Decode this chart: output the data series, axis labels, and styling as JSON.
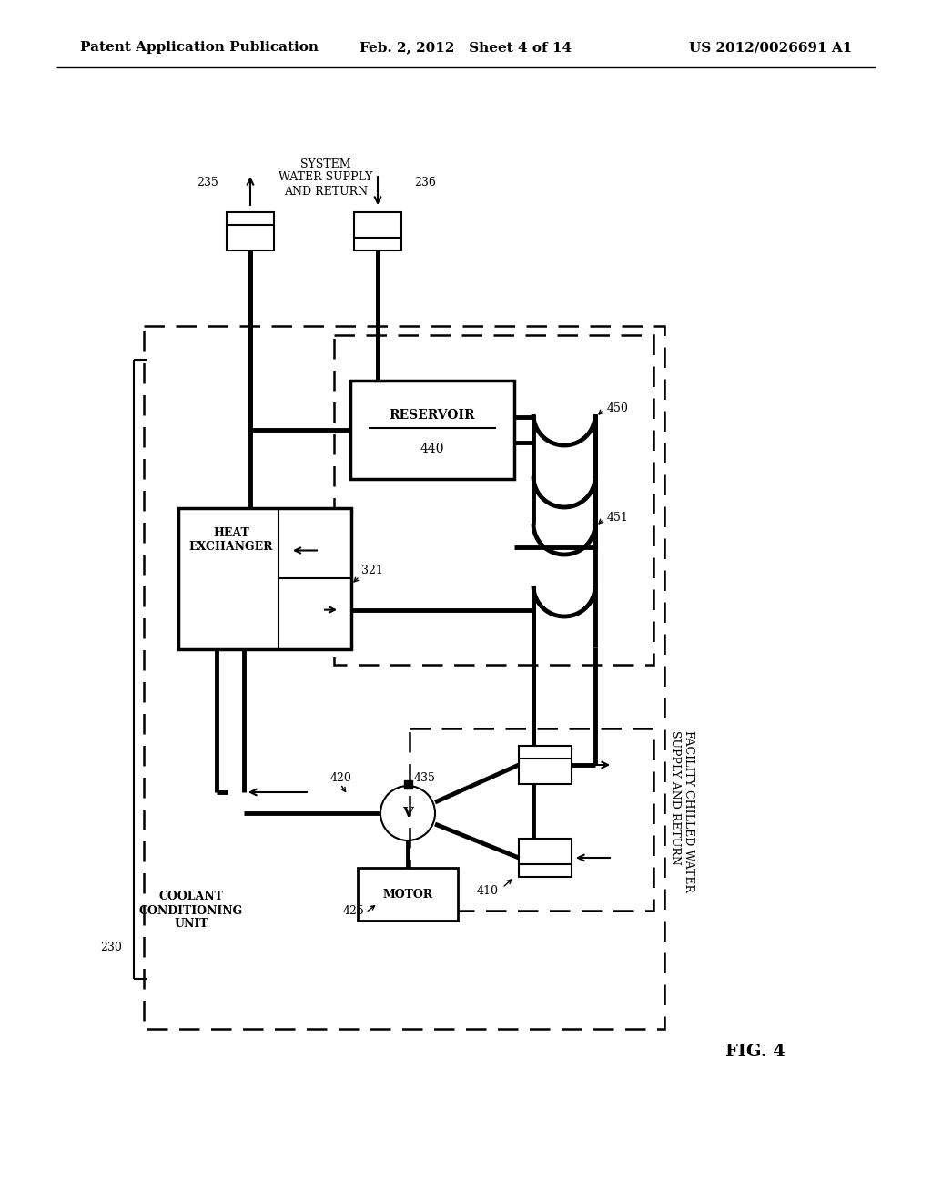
{
  "bg": "#ffffff",
  "header_left": "Patent Application Publication",
  "header_center": "Feb. 2, 2012   Sheet 4 of 14",
  "header_right": "US 2012/0026691 A1",
  "fig_label": "FIG. 4"
}
